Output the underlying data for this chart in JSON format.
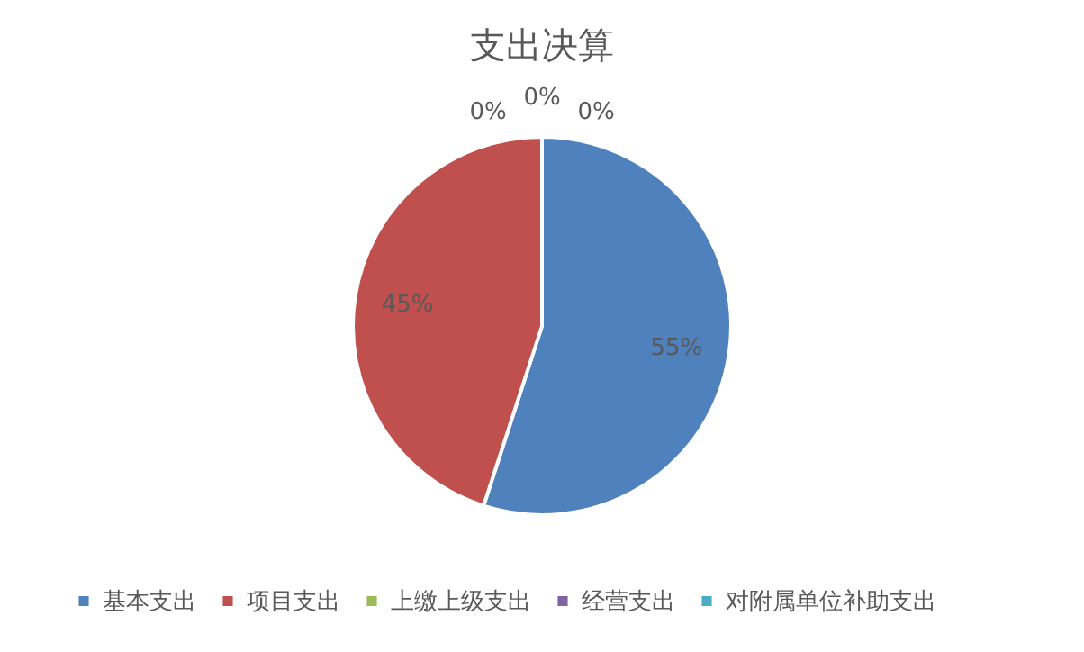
{
  "chart_data": {
    "type": "pie",
    "title": "支出决算",
    "categories": [
      "基本支出",
      "项目支出",
      "上缴上级支出",
      "经营支出",
      "对附属单位补助支出"
    ],
    "values": [
      55,
      45,
      0,
      0,
      0
    ],
    "colors": [
      "#4f81bd",
      "#c0504d",
      "#9bbb59",
      "#8064a2",
      "#4bacc6"
    ],
    "value_labels": [
      "55%",
      "45%",
      "0%",
      "0%",
      "0%"
    ],
    "legend": "bottom"
  }
}
